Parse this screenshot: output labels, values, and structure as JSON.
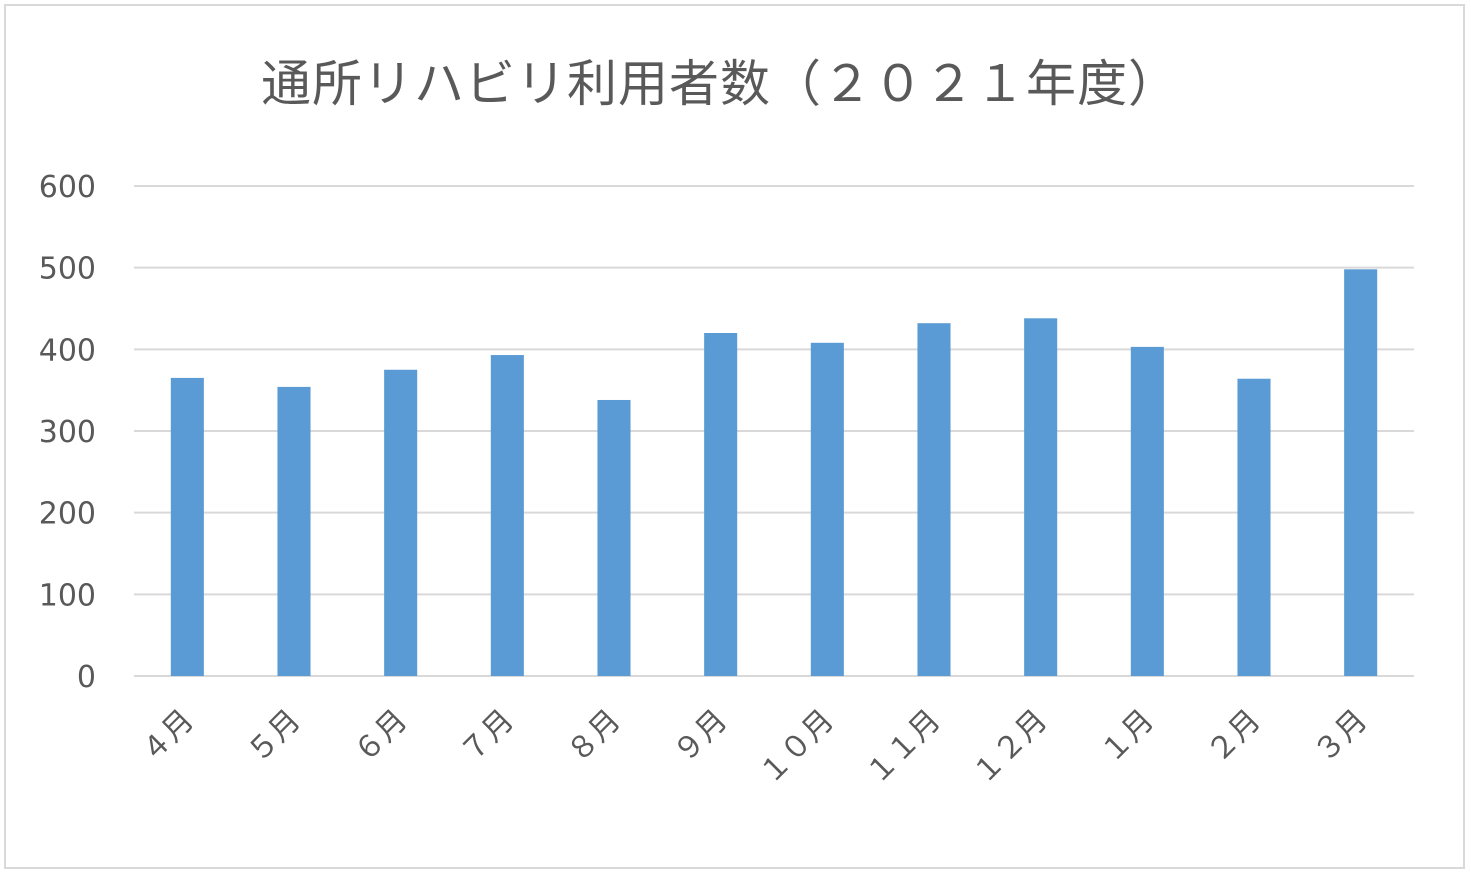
{
  "chart_data": {
    "type": "bar",
    "title": "通所リハビリ利用者数（２０２１年度）",
    "xlabel": "",
    "ylabel": "",
    "categories": [
      "４月",
      "５月",
      "６月",
      "７月",
      "８月",
      "９月",
      "１０月",
      "１１月",
      "１２月",
      "１月",
      "２月",
      "３月"
    ],
    "values": [
      365,
      354,
      375,
      393,
      338,
      420,
      408,
      432,
      438,
      403,
      364,
      498
    ],
    "ylim": [
      0,
      600
    ],
    "yticks": [
      "0",
      "100",
      "200",
      "300",
      "400",
      "500",
      "600"
    ],
    "grid": true,
    "legend": "none",
    "colors": {
      "bar": "#5b9bd5",
      "grid": "#d9d9d9",
      "text": "#595959"
    }
  }
}
